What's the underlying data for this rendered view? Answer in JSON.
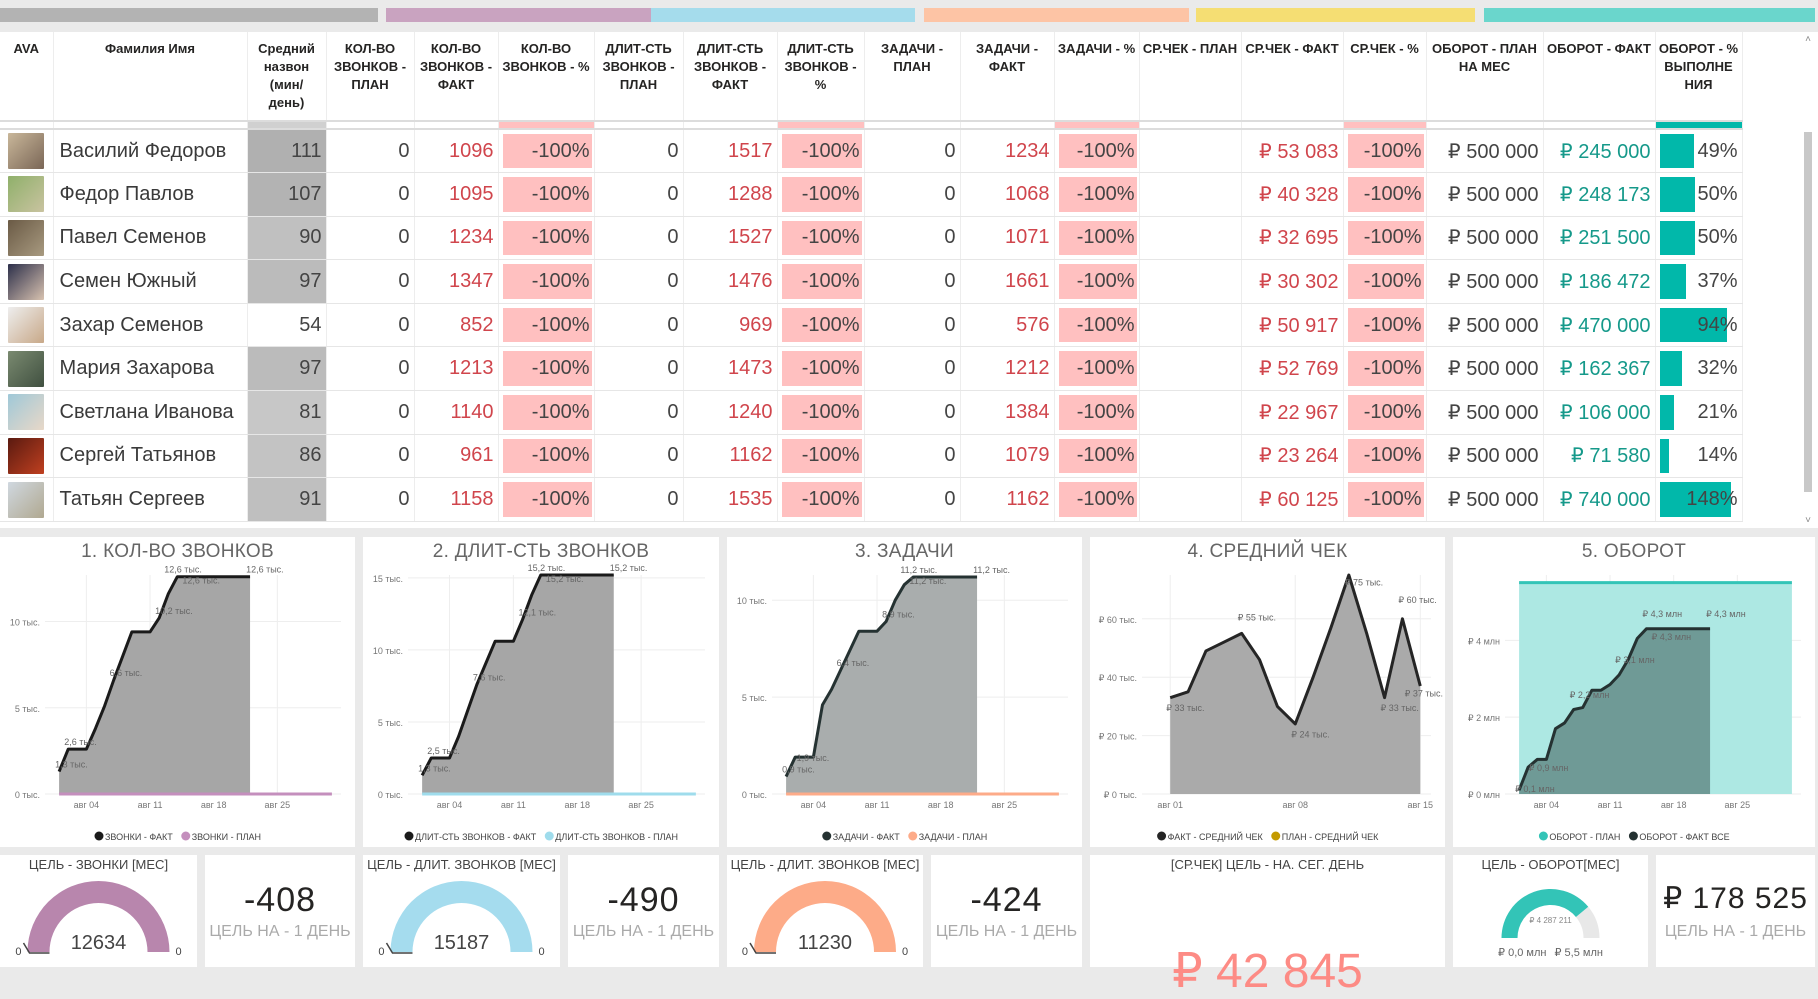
{
  "colors": {
    "gray": "#b3b3b3",
    "pink": "#c9a3c0",
    "blue": "#a5dcec",
    "orange": "#fdc4a5",
    "yellow": "#f5de73",
    "teal": "#6ad6cc",
    "bad_cell": "#ffc0c0",
    "bad_text": "#d0454c",
    "good_text": "#15998a",
    "bar": "#01b8aa"
  },
  "table": {
    "headers": [
      "AVA",
      "Фамилия Имя",
      "Средний назвон (мин/ день)",
      "КОЛ-ВО ЗВОНКОВ - ПЛАН",
      "КОЛ-ВО ЗВОНКОВ - ФАКТ",
      "КОЛ-ВО ЗВОНКОВ - %",
      "ДЛИТ-СТЬ ЗВОНКОВ - ПЛАН",
      "ДЛИТ-СТЬ ЗВОНКОВ - ФАКТ",
      "ДЛИТ-СТЬ ЗВОНКОВ - %",
      "ЗАДАЧИ - ПЛАН",
      "ЗАДАЧИ - ФАКТ",
      "ЗАДАЧИ - %",
      "СР.ЧЕК - ПЛАН",
      "СР.ЧЕК - ФАКТ",
      "СР.ЧЕК - %",
      "ОБОРОТ - ПЛАН НА МЕС",
      "ОБОРОТ - ФАКТ",
      "ОБОРОТ - % ВЫПОЛНЕ НИЯ"
    ],
    "rows": [
      {
        "name": "Василий Федоров",
        "avg": "111",
        "calls_plan": "0",
        "calls_fact": "1096",
        "calls_pct": "-100%",
        "dur_plan": "0",
        "dur_fact": "1517",
        "dur_pct": "-100%",
        "task_plan": "0",
        "task_fact": "1234",
        "task_pct": "-100%",
        "chk_plan": "",
        "chk_fact": "₽ 53 083",
        "chk_pct": "-100%",
        "turn_plan": "₽ 500 000",
        "turn_fact": "₽ 245 000",
        "turn_pct": "49%",
        "turn_pct_value": 49
      },
      {
        "name": "Федор Павлов",
        "avg": "107",
        "calls_plan": "0",
        "calls_fact": "1095",
        "calls_pct": "-100%",
        "dur_plan": "0",
        "dur_fact": "1288",
        "dur_pct": "-100%",
        "task_plan": "0",
        "task_fact": "1068",
        "task_pct": "-100%",
        "chk_plan": "",
        "chk_fact": "₽ 40 328",
        "chk_pct": "-100%",
        "turn_plan": "₽ 500 000",
        "turn_fact": "₽ 248 173",
        "turn_pct": "50%",
        "turn_pct_value": 50
      },
      {
        "name": "Павел Семенов",
        "avg": "90",
        "calls_plan": "0",
        "calls_fact": "1234",
        "calls_pct": "-100%",
        "dur_plan": "0",
        "dur_fact": "1527",
        "dur_pct": "-100%",
        "task_plan": "0",
        "task_fact": "1071",
        "task_pct": "-100%",
        "chk_plan": "",
        "chk_fact": "₽ 32 695",
        "chk_pct": "-100%",
        "turn_plan": "₽ 500 000",
        "turn_fact": "₽ 251 500",
        "turn_pct": "50%",
        "turn_pct_value": 50
      },
      {
        "name": "Семен Южный",
        "avg": "97",
        "calls_plan": "0",
        "calls_fact": "1347",
        "calls_pct": "-100%",
        "dur_plan": "0",
        "dur_fact": "1476",
        "dur_pct": "-100%",
        "task_plan": "0",
        "task_fact": "1661",
        "task_pct": "-100%",
        "chk_plan": "",
        "chk_fact": "₽ 30 302",
        "chk_pct": "-100%",
        "turn_plan": "₽ 500 000",
        "turn_fact": "₽ 186 472",
        "turn_pct": "37%",
        "turn_pct_value": 37
      },
      {
        "name": "Захар Семенов",
        "avg": "54",
        "calls_plan": "0",
        "calls_fact": "852",
        "calls_pct": "-100%",
        "dur_plan": "0",
        "dur_fact": "969",
        "dur_pct": "-100%",
        "task_plan": "0",
        "task_fact": "576",
        "task_pct": "-100%",
        "chk_plan": "",
        "chk_fact": "₽ 50 917",
        "chk_pct": "-100%",
        "turn_plan": "₽ 500 000",
        "turn_fact": "₽ 470 000",
        "turn_pct": "94%",
        "turn_pct_value": 94
      },
      {
        "name": "Мария Захарова",
        "avg": "97",
        "calls_plan": "0",
        "calls_fact": "1213",
        "calls_pct": "-100%",
        "dur_plan": "0",
        "dur_fact": "1473",
        "dur_pct": "-100%",
        "task_plan": "0",
        "task_fact": "1212",
        "task_pct": "-100%",
        "chk_plan": "",
        "chk_fact": "₽ 52 769",
        "chk_pct": "-100%",
        "turn_plan": "₽ 500 000",
        "turn_fact": "₽ 162 367",
        "turn_pct": "32%",
        "turn_pct_value": 32
      },
      {
        "name": "Светлана Иванова",
        "avg": "81",
        "calls_plan": "0",
        "calls_fact": "1140",
        "calls_pct": "-100%",
        "dur_plan": "0",
        "dur_fact": "1240",
        "dur_pct": "-100%",
        "task_plan": "0",
        "task_fact": "1384",
        "task_pct": "-100%",
        "chk_plan": "",
        "chk_fact": "₽ 22 967",
        "chk_pct": "-100%",
        "turn_plan": "₽ 500 000",
        "turn_fact": "₽ 106 000",
        "turn_pct": "21%",
        "turn_pct_value": 21
      },
      {
        "name": "Сергей Татьянов",
        "avg": "86",
        "calls_plan": "0",
        "calls_fact": "961",
        "calls_pct": "-100%",
        "dur_plan": "0",
        "dur_fact": "1162",
        "dur_pct": "-100%",
        "task_plan": "0",
        "task_fact": "1079",
        "task_pct": "-100%",
        "chk_plan": "",
        "chk_fact": "₽ 23 264",
        "chk_pct": "-100%",
        "turn_plan": "₽ 500 000",
        "turn_fact": "₽ 71 580",
        "turn_pct": "14%",
        "turn_pct_value": 14
      },
      {
        "name": "Татьян Сергеев",
        "avg": "91",
        "calls_plan": "0",
        "calls_fact": "1158",
        "calls_pct": "-100%",
        "dur_plan": "0",
        "dur_fact": "1535",
        "dur_pct": "-100%",
        "task_plan": "0",
        "task_fact": "1162",
        "task_pct": "-100%",
        "chk_plan": "",
        "chk_fact": "₽ 60 125",
        "chk_pct": "-100%",
        "turn_plan": "₽ 500 000",
        "turn_fact": "₽ 740 000",
        "turn_pct": "148%",
        "turn_pct_value": 148
      }
    ]
  },
  "chart_data": [
    {
      "type": "area",
      "title": "1. КОЛ-ВО ЗВОНКОВ",
      "xlim": [
        0,
        32
      ],
      "ylim": [
        0,
        12.7
      ],
      "xticks": [
        {
          "x": 4,
          "label": "авг 04"
        },
        {
          "x": 11,
          "label": "авг 11"
        },
        {
          "x": 18,
          "label": "авг 18"
        },
        {
          "x": 25,
          "label": "авг 25"
        }
      ],
      "yticks": [
        {
          "y": 0,
          "label": "0 тыс."
        },
        {
          "y": 5,
          "label": "5 тыс."
        },
        {
          "y": 10,
          "label": "10 тыс."
        }
      ],
      "series": [
        {
          "name": "ЗВОНКИ - ФАКТ",
          "color": "#1a1a1a",
          "fill": "#a6a6a6",
          "kind": "area",
          "x": [
            1,
            2,
            3,
            4,
            5,
            6,
            7,
            8,
            9,
            10,
            11,
            12,
            13,
            14,
            15,
            16,
            17,
            18,
            19,
            20,
            21,
            22
          ],
          "values": [
            1.3,
            2.6,
            2.6,
            2.6,
            3.8,
            5.1,
            6.6,
            8.0,
            9.4,
            9.4,
            9.4,
            10.2,
            11.6,
            12.6,
            12.6,
            12.6,
            12.6,
            12.6,
            12.6,
            12.6,
            12.6,
            12.6
          ]
        },
        {
          "name": "ЗВОНКИ - ПЛАН",
          "color": "#c48fbd",
          "kind": "line",
          "x": [
            1,
            31
          ],
          "values": [
            0,
            0
          ]
        }
      ],
      "data_labels": [
        {
          "x": 1,
          "y": 1.3,
          "text": "1,3 тыс."
        },
        {
          "x": 2,
          "y": 2.6,
          "text": "2,6 тыс."
        },
        {
          "x": 7,
          "y": 6.6,
          "text": "6,6 тыс."
        },
        {
          "x": 12,
          "y": 10.2,
          "text": "10,2 тыс."
        },
        {
          "x": 13,
          "y": 12.6,
          "text": "12,6 тыс."
        },
        {
          "x": 15,
          "y": 12.6,
          "text": "12,6 тыс."
        },
        {
          "x": 22,
          "y": 12.6,
          "text": "12,6 тыс."
        }
      ]
    },
    {
      "type": "area",
      "title": "2. ДЛИТ-СТЬ ЗВОНКОВ",
      "xlim": [
        0,
        32
      ],
      "ylim": [
        0,
        15.2
      ],
      "xticks": [
        {
          "x": 4,
          "label": "авг 04"
        },
        {
          "x": 11,
          "label": "авг 11"
        },
        {
          "x": 18,
          "label": "авг 18"
        },
        {
          "x": 25,
          "label": "авг 25"
        }
      ],
      "yticks": [
        {
          "y": 0,
          "label": "0 тыс."
        },
        {
          "y": 5,
          "label": "5 тыс."
        },
        {
          "y": 10,
          "label": "10 тыс."
        },
        {
          "y": 15,
          "label": "15 тыс."
        }
      ],
      "series": [
        {
          "name": "ДЛИТ-СТЬ ЗВОНКОВ - ФАКТ",
          "color": "#1a1a1a",
          "fill": "#a6a6a6",
          "kind": "area",
          "x": [
            1,
            2,
            3,
            4,
            5,
            6,
            7,
            8,
            9,
            10,
            11,
            12,
            13,
            14,
            15,
            16,
            17,
            18,
            19,
            20,
            21,
            22
          ],
          "values": [
            1.3,
            2.5,
            2.5,
            2.5,
            4.0,
            5.8,
            7.6,
            9.1,
            10.6,
            10.6,
            10.6,
            12.1,
            13.8,
            15.2,
            15.2,
            15.2,
            15.2,
            15.2,
            15.2,
            15.2,
            15.2,
            15.2
          ]
        },
        {
          "name": "ДЛИТ-СТЬ ЗВОНКОВ - ПЛАН",
          "color": "#9fdcec",
          "kind": "line",
          "x": [
            1,
            31
          ],
          "values": [
            0,
            0
          ]
        }
      ],
      "data_labels": [
        {
          "x": 1,
          "y": 1.3,
          "text": "1,3 тыс."
        },
        {
          "x": 2,
          "y": 2.5,
          "text": "2,5 тыс."
        },
        {
          "x": 7,
          "y": 7.6,
          "text": "7,6 тыс."
        },
        {
          "x": 12,
          "y": 12.1,
          "text": "12,1 тыс."
        },
        {
          "x": 13,
          "y": 15.2,
          "text": "15,2 тыс."
        },
        {
          "x": 15,
          "y": 15.2,
          "text": "15,2 тыс."
        },
        {
          "x": 22,
          "y": 15.2,
          "text": "15,2 тыс."
        }
      ]
    },
    {
      "type": "area",
      "title": "3. ЗАДАЧИ",
      "xlim": [
        0,
        32
      ],
      "ylim": [
        0,
        11.3
      ],
      "xticks": [
        {
          "x": 4,
          "label": "авг 04"
        },
        {
          "x": 11,
          "label": "авг 11"
        },
        {
          "x": 18,
          "label": "авг 18"
        },
        {
          "x": 25,
          "label": "авг 25"
        }
      ],
      "yticks": [
        {
          "y": 0,
          "label": "0 тыс."
        },
        {
          "y": 5,
          "label": "5 тыс."
        },
        {
          "y": 10,
          "label": "10 тыс."
        }
      ],
      "series": [
        {
          "name": "ЗАДАЧИ - ФАКТ",
          "color": "#253232",
          "fill": "#a9adad",
          "kind": "area",
          "x": [
            1,
            2,
            3,
            4,
            5,
            6,
            7,
            8,
            9,
            10,
            11,
            12,
            13,
            14,
            15,
            16,
            17,
            18,
            19,
            20,
            21,
            22
          ],
          "values": [
            0.9,
            1.9,
            1.9,
            1.9,
            4.6,
            5.4,
            6.4,
            7.4,
            8.4,
            8.4,
            8.4,
            8.9,
            10.0,
            10.8,
            11.2,
            11.2,
            11.2,
            11.2,
            11.2,
            11.2,
            11.2,
            11.2
          ]
        },
        {
          "name": "ЗАДАЧИ - ПЛАН",
          "color": "#fdab89",
          "kind": "line",
          "x": [
            1,
            31
          ],
          "values": [
            0,
            0
          ]
        }
      ],
      "data_labels": [
        {
          "x": 1,
          "y": 0.9,
          "text": "0,9 тыс."
        },
        {
          "x": 2.6,
          "y": 1.5,
          "text": "1,9 тыс."
        },
        {
          "x": 7,
          "y": 6.4,
          "text": "6,4 тыс."
        },
        {
          "x": 12,
          "y": 8.9,
          "text": "8,9 тыс."
        },
        {
          "x": 14,
          "y": 11.2,
          "text": "11,2 тыс."
        },
        {
          "x": 15,
          "y": 11.2,
          "text": "11,2 тыс."
        },
        {
          "x": 22,
          "y": 11.2,
          "text": "11,2 тыс."
        }
      ]
    },
    {
      "type": "area",
      "title": "4. СРЕДНИЙ ЧЕК",
      "xlim": [
        -0.3,
        15.6
      ],
      "ylim": [
        0,
        75
      ],
      "xticks": [
        {
          "x": 1,
          "label": "авг 01"
        },
        {
          "x": 8,
          "label": "авг 08"
        },
        {
          "x": 15,
          "label": "авг 15"
        }
      ],
      "yticks": [
        {
          "y": 0,
          "label": "₽ 0 тыс."
        },
        {
          "y": 20,
          "label": "₽ 20 тыс."
        },
        {
          "y": 40,
          "label": "₽ 40 тыс."
        },
        {
          "y": 60,
          "label": "₽ 60 тыс."
        }
      ],
      "series": [
        {
          "name": "ФАКТ - СРЕДНИЙ ЧЕК",
          "color": "#252525",
          "fill": "#aaaaaa",
          "kind": "area",
          "x": [
            1,
            2,
            3,
            4,
            5,
            6,
            7,
            8,
            9,
            10,
            11,
            12,
            13,
            14,
            15
          ],
          "values": [
            33,
            35,
            49,
            52,
            55,
            46,
            30,
            24,
            40,
            57,
            75,
            55,
            33,
            60,
            37
          ]
        },
        {
          "name": "ПЛАН - СРЕДНИЙ ЧЕК",
          "color": "#c49a00",
          "kind": "none",
          "x": [],
          "values": []
        }
      ],
      "data_labels": [
        {
          "x": 1,
          "y": 27,
          "text": "₽ 33 тыс."
        },
        {
          "x": 5,
          "y": 58,
          "text": "₽ 55 тыс."
        },
        {
          "x": 8,
          "y": 18,
          "text": "₽ 24 тыс."
        },
        {
          "x": 11,
          "y": 70,
          "text": "₽ 75 тыс."
        },
        {
          "x": 13,
          "y": 27,
          "text": "₽ 33 тыс."
        },
        {
          "x": 14,
          "y": 64,
          "text": "₽ 60 тыс."
        },
        {
          "x": 15,
          "y": 32,
          "text": "₽ 37 тыс."
        }
      ]
    },
    {
      "type": "area",
      "title": "5. ОБОРОТ",
      "xlim": [
        0,
        32
      ],
      "ylim": [
        0,
        5.7
      ],
      "xticks": [
        {
          "x": 4,
          "label": "авг 04"
        },
        {
          "x": 11,
          "label": "авг 11"
        },
        {
          "x": 18,
          "label": "авг 18"
        },
        {
          "x": 25,
          "label": "авг 25"
        }
      ],
      "yticks": [
        {
          "y": 0,
          "label": "₽ 0 млн"
        },
        {
          "y": 2,
          "label": "₽ 2 млн"
        },
        {
          "y": 4,
          "label": "₽ 4 млн"
        }
      ],
      "series": [
        {
          "name": "ОБОРОТ - ПЛАН",
          "color": "#33c4b7",
          "fill": "#ade8e3",
          "kind": "area",
          "x": [
            1,
            31
          ],
          "values": [
            5.5,
            5.5
          ]
        },
        {
          "name": "ОБОРОТ - ФАКТ ВСЕ",
          "color": "#253232",
          "fill": "rgba(60,90,88,0.55)",
          "kind": "area",
          "x": [
            1,
            2,
            3,
            4,
            5,
            6,
            7,
            8,
            9,
            10,
            11,
            12,
            13,
            14,
            15,
            16,
            17,
            18,
            19,
            20,
            21,
            22
          ],
          "values": [
            0.1,
            0.7,
            0.9,
            0.9,
            1.7,
            1.85,
            2.2,
            2.25,
            2.7,
            2.7,
            2.85,
            3.1,
            3.5,
            4.05,
            4.3,
            4.3,
            4.3,
            4.3,
            4.3,
            4.3,
            4.3,
            4.3
          ]
        }
      ],
      "data_labels": [
        {
          "x": 1,
          "y": 0.0,
          "text": "₽ 0,1 млн"
        },
        {
          "x": 2.5,
          "y": 0.5,
          "text": "₽ 0,9 млн"
        },
        {
          "x": 7,
          "y": 2.4,
          "text": "₽ 2,2 млн"
        },
        {
          "x": 12,
          "y": 3.3,
          "text": "₽ 3,1 млн"
        },
        {
          "x": 15,
          "y": 4.5,
          "text": "₽ 4,3 млн"
        },
        {
          "x": 16,
          "y": 3.9,
          "text": "₽ 4,3 млн"
        },
        {
          "x": 22,
          "y": 4.5,
          "text": "₽ 4,3 млн"
        }
      ]
    }
  ],
  "cards": {
    "g1": {
      "title": "ЦЕЛЬ - ЗВОНКИ [МЕС]",
      "value": "12634",
      "min": "0",
      "max": "0",
      "fraction": 1,
      "color": "#b886ad"
    },
    "k1": {
      "value": "-408",
      "sub": "ЦЕЛЬ НА - 1 ДЕНЬ"
    },
    "g2": {
      "title": "ЦЕЛЬ - ДЛИТ. ЗВОНКОВ [МЕС]",
      "value": "15187",
      "min": "0",
      "max": "0",
      "fraction": 1,
      "color": "#a5dcee"
    },
    "k2": {
      "value": "-490",
      "sub": "ЦЕЛЬ НА - 1 ДЕНЬ"
    },
    "g3": {
      "title": "ЦЕЛЬ - ДЛИТ. ЗВОНКОВ [МЕС]",
      "value": "11230",
      "min": "0",
      "max": "0",
      "fraction": 1,
      "color": "#fdab88"
    },
    "k3": {
      "value": "-424",
      "sub": "ЦЕЛЬ НА - 1 ДЕНЬ"
    },
    "chk": {
      "title": "[СР.ЧЕК]  ЦЕЛЬ - НА. СЕГ. ДЕНЬ",
      "value": "₽ 42 845"
    },
    "g4": {
      "title": "ЦЕЛЬ - ОБОРОТ[МЕС]",
      "value": "₽ 4 287 211",
      "min": "₽ 0,0 млн",
      "max": "₽ 5,5 млн",
      "fraction": 0.78,
      "color": "#33c4b7"
    },
    "k4": {
      "value": "₽ 178 525",
      "sub": "ЦЕЛЬ НА - 1 ДЕНЬ"
    }
  }
}
